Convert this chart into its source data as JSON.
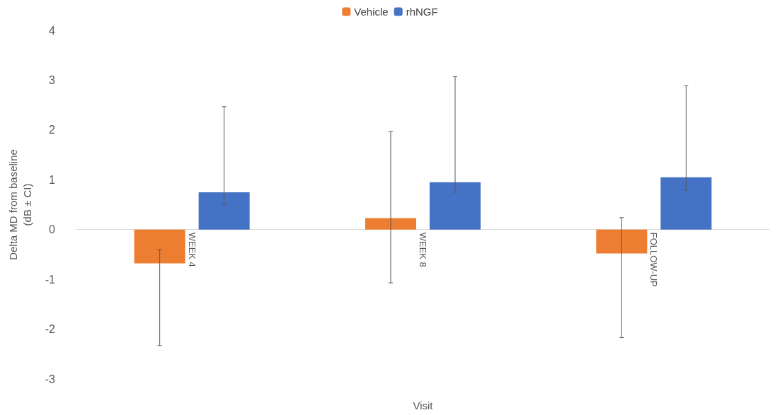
{
  "chart_data": {
    "type": "bar",
    "xlabel": "Visit",
    "ylabel": "Delta MD from baseline\n(dB ± CI)",
    "categories": [
      "WEEK 4",
      "WEEK 8",
      "FOLLOW-UP"
    ],
    "series": [
      {
        "name": "Vehicle",
        "color": "#ed7d31",
        "values": [
          -0.68,
          0.23,
          -0.48
        ],
        "errors": [
          [
            -2.33,
            -0.4
          ],
          [
            -1.07,
            1.97
          ],
          [
            -2.17,
            0.24
          ]
        ]
      },
      {
        "name": "rhNGF",
        "color": "#4472c4",
        "values": [
          0.75,
          0.95,
          1.05
        ],
        "errors": [
          [
            0.5,
            2.47
          ],
          [
            0.75,
            3.07
          ],
          [
            0.79,
            2.89
          ]
        ]
      }
    ],
    "ylim": [
      -3,
      4
    ],
    "yticks": [
      -3,
      -2,
      -1,
      0,
      1,
      2,
      3,
      4
    ],
    "grid": false,
    "legend": "top"
  }
}
